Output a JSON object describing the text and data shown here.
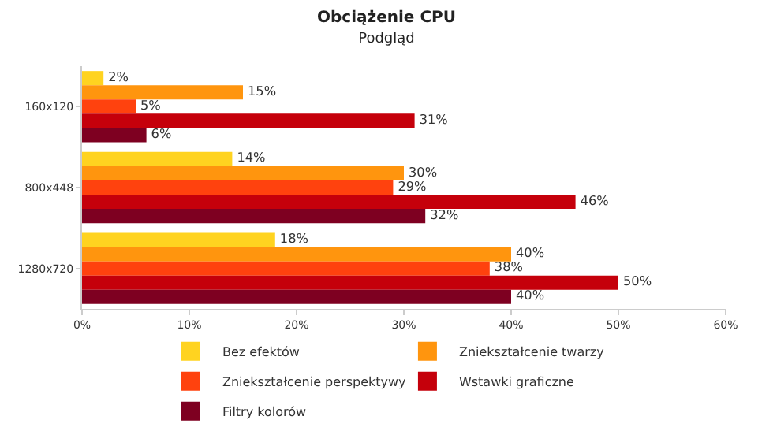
{
  "chart_data": {
    "type": "bar",
    "orientation": "horizontal",
    "title": "Obciążenie CPU",
    "subtitle": "Podgląd",
    "categories": [
      "160x120",
      "800x448",
      "1280x720"
    ],
    "series": [
      {
        "name": "Bez efektów",
        "color": "#ffd320",
        "values": [
          2,
          14,
          18
        ],
        "value_labels": [
          "2%",
          "14%",
          "18%"
        ]
      },
      {
        "name": "Zniekształcenie twarzy",
        "color": "#ff950e",
        "values": [
          15,
          30,
          40
        ],
        "value_labels": [
          "15%",
          "30%",
          "40%"
        ]
      },
      {
        "name": "Zniekształcenie perspektywy",
        "color": "#ff420e",
        "values": [
          5,
          29,
          38
        ],
        "value_labels": [
          "5%",
          "29%",
          "38%"
        ]
      },
      {
        "name": "Wstawki graficzne",
        "color": "#c5000b",
        "values": [
          31,
          46,
          50
        ],
        "value_labels": [
          "31%",
          "46%",
          "50%"
        ]
      },
      {
        "name": "Filtry kolorów",
        "color": "#7e0021",
        "values": [
          6,
          32,
          40
        ],
        "value_labels": [
          "6%",
          "32%",
          "40%"
        ]
      }
    ],
    "xlim": [
      0,
      60
    ],
    "xticks": [
      {
        "value": 0,
        "label": "0%"
      },
      {
        "value": 10,
        "label": "10%"
      },
      {
        "value": 20,
        "label": "20%"
      },
      {
        "value": 30,
        "label": "30%"
      },
      {
        "value": 40,
        "label": "40%"
      },
      {
        "value": 50,
        "label": "50%"
      },
      {
        "value": 60,
        "label": "60%"
      }
    ],
    "legend": "bottom"
  }
}
